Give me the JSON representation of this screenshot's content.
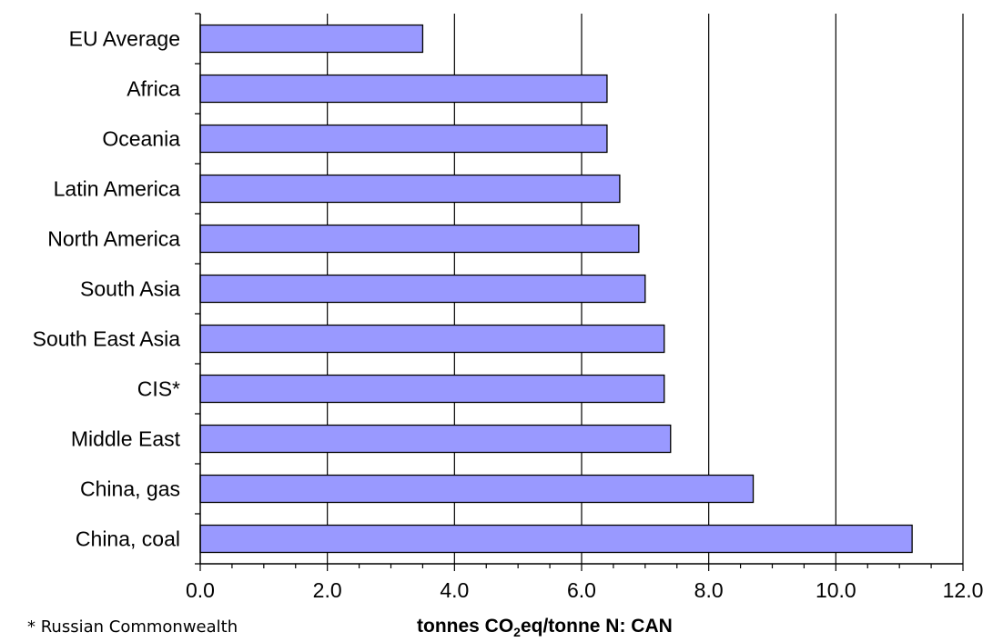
{
  "chart_data": {
    "type": "bar",
    "orientation": "horizontal",
    "categories": [
      "EU Average",
      "Africa",
      "Oceania",
      "Latin America",
      "North America",
      "South Asia",
      "South East Asia",
      "CIS*",
      "Middle East",
      "China, gas",
      "China, coal"
    ],
    "values": [
      3.5,
      6.4,
      6.4,
      6.6,
      6.9,
      7.0,
      7.3,
      7.3,
      7.4,
      8.7,
      11.2
    ],
    "xlim": [
      0,
      12
    ],
    "xticks": [
      "0.0",
      "2.0",
      "4.0",
      "6.0",
      "8.0",
      "10.0",
      "12.0"
    ],
    "xlabel_prefix": "tonnes CO",
    "xlabel_sub": "2",
    "xlabel_suffix": "eq/tonne N: CAN",
    "footnote": "* Russian Commonwealth",
    "grid": "vertical",
    "bar_color": "#9999ff"
  }
}
